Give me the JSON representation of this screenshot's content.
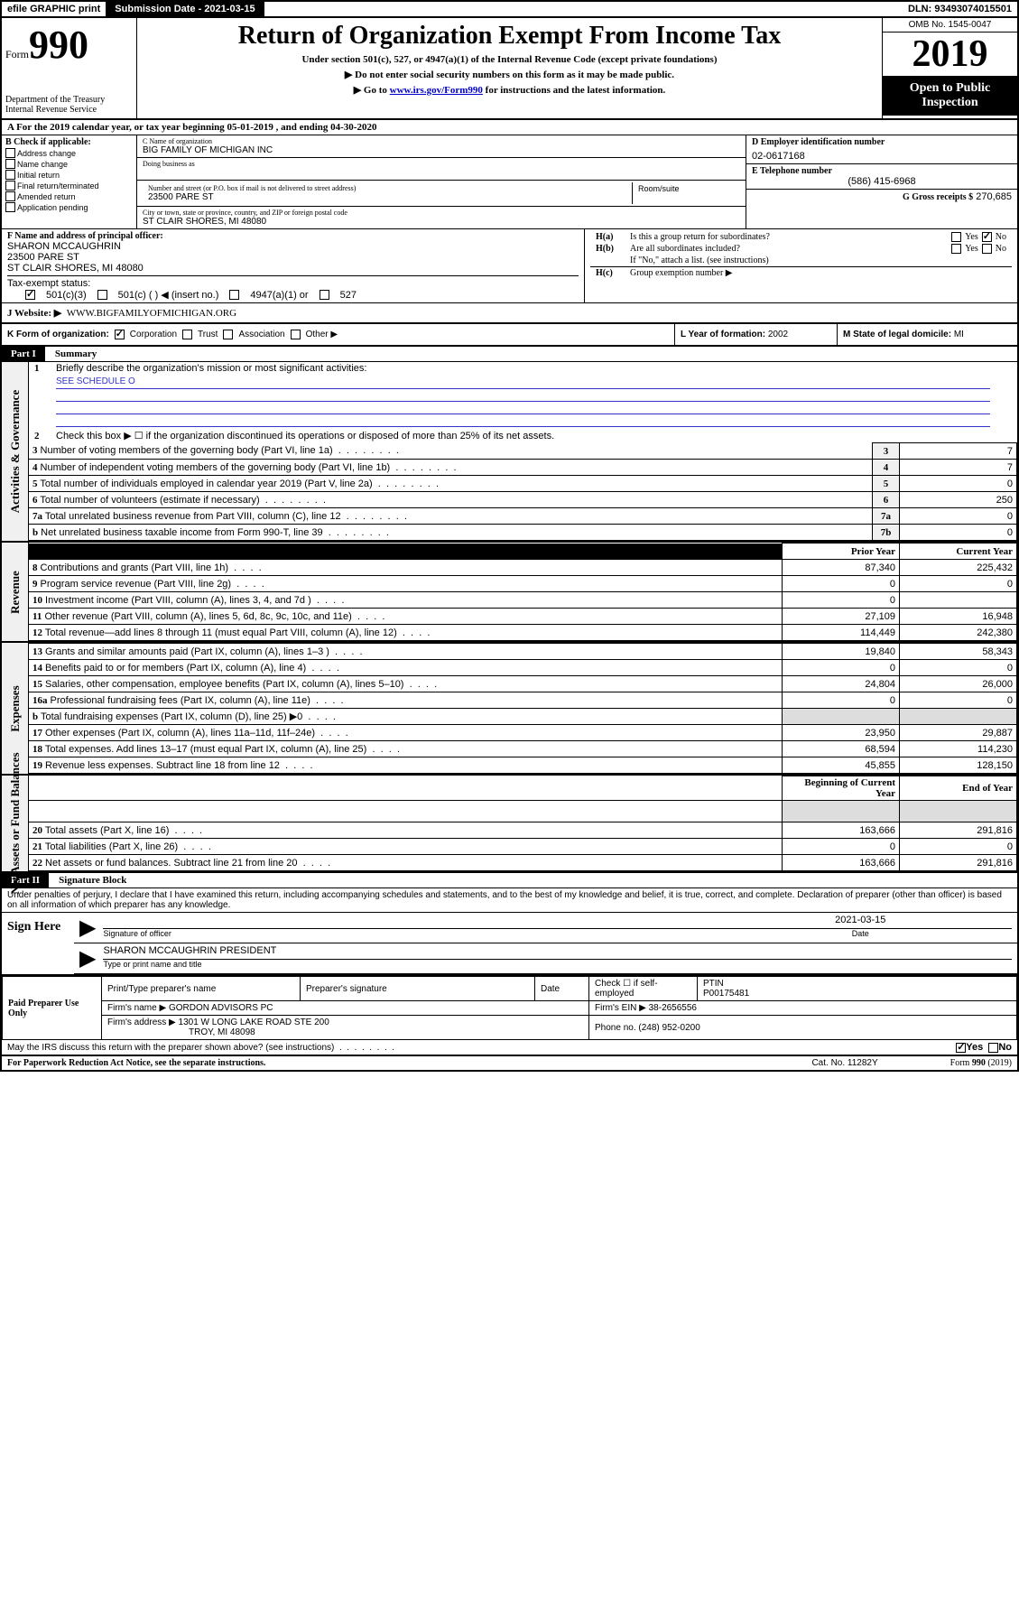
{
  "top": {
    "efile": "efile GRAPHIC print",
    "submission": "Submission Date - 2021-03-15",
    "dln": "DLN: 93493074015501"
  },
  "header": {
    "form_label": "Form",
    "form_num": "990",
    "dept": "Department of the Treasury\nInternal Revenue Service",
    "title": "Return of Organization Exempt From Income Tax",
    "subtitle": "Under section 501(c), 527, or 4947(a)(1) of the Internal Revenue Code (except private foundations)",
    "instr1": "▶ Do not enter social security numbers on this form as it may be made public.",
    "instr2_pre": "▶ Go to ",
    "instr2_link": "www.irs.gov/Form990",
    "instr2_post": " for instructions and the latest information.",
    "omb": "OMB No. 1545-0047",
    "year": "2019",
    "open": "Open to Public Inspection"
  },
  "period": "A For the 2019 calendar year, or tax year beginning 05-01-2019   , and ending 04-30-2020",
  "box_b": {
    "label": "B Check if applicable:",
    "items": [
      "Address change",
      "Name change",
      "Initial return",
      "Final return/terminated",
      "Amended return",
      "Application pending"
    ]
  },
  "box_c": {
    "name_lbl": "C Name of organization",
    "name": "BIG FAMILY OF MICHIGAN INC",
    "dba_lbl": "Doing business as",
    "addr_lbl": "Number and street (or P.O. box if mail is not delivered to street address)",
    "room_lbl": "Room/suite",
    "addr": "23500 PARE ST",
    "city_lbl": "City or town, state or province, country, and ZIP or foreign postal code",
    "city": "ST CLAIR SHORES, MI  48080"
  },
  "box_d": {
    "lbl": "D Employer identification number",
    "val": "02-0617168"
  },
  "box_e": {
    "lbl": "E Telephone number",
    "val": "(586) 415-6968"
  },
  "box_g": {
    "lbl": "G Gross receipts $",
    "val": "270,685"
  },
  "box_f": {
    "lbl": "F Name and address of principal officer:",
    "name": "SHARON MCCAUGHRIN",
    "addr1": "23500 PARE ST",
    "addr2": "ST CLAIR SHORES, MI  48080"
  },
  "box_h": {
    "a": "Is this a group return for subordinates?",
    "b": "Are all subordinates included?",
    "note": "If \"No,\" attach a list. (see instructions)",
    "c": "Group exemption number ▶"
  },
  "tax_exempt": {
    "lbl": "Tax-exempt status:",
    "opts": [
      "501(c)(3)",
      "501(c) (  ) ◀ (insert no.)",
      "4947(a)(1) or",
      "527"
    ]
  },
  "website": {
    "lbl": "J   Website: ▶",
    "val": "WWW.BIGFAMILYOFMICHIGAN.ORG"
  },
  "box_k": {
    "lbl": "K Form of organization:",
    "opts": [
      "Corporation",
      "Trust",
      "Association",
      "Other ▶"
    ]
  },
  "box_l": {
    "lbl": "L Year of formation:",
    "val": "2002"
  },
  "box_m": {
    "lbl": "M State of legal domicile:",
    "val": "MI"
  },
  "part1": {
    "num": "Part I",
    "title": "Summary"
  },
  "part2": {
    "num": "Part II",
    "title": "Signature Block"
  },
  "summary": {
    "q1": "Briefly describe the organization's mission or most significant activities:",
    "q1_val": "SEE SCHEDULE O",
    "q2": "Check this box ▶ ☐  if the organization discontinued its operations or disposed of more than 25% of its net assets.",
    "rows_single": [
      {
        "n": "3",
        "t": "Number of voting members of the governing body (Part VI, line 1a)",
        "box": "3",
        "v": "7"
      },
      {
        "n": "4",
        "t": "Number of independent voting members of the governing body (Part VI, line 1b)",
        "box": "4",
        "v": "7"
      },
      {
        "n": "5",
        "t": "Total number of individuals employed in calendar year 2019 (Part V, line 2a)",
        "box": "5",
        "v": "0"
      },
      {
        "n": "6",
        "t": "Total number of volunteers (estimate if necessary)",
        "box": "6",
        "v": "250"
      },
      {
        "n": "7a",
        "t": "Total unrelated business revenue from Part VIII, column (C), line 12",
        "box": "7a",
        "v": "0"
      },
      {
        "n": "b",
        "t": "Net unrelated business taxable income from Form 990-T, line 39",
        "box": "7b",
        "v": "0"
      }
    ],
    "col_headers": {
      "prior": "Prior Year",
      "current": "Current Year"
    },
    "revenue": [
      {
        "n": "8",
        "t": "Contributions and grants (Part VIII, line 1h)",
        "p": "87,340",
        "c": "225,432"
      },
      {
        "n": "9",
        "t": "Program service revenue (Part VIII, line 2g)",
        "p": "0",
        "c": "0"
      },
      {
        "n": "10",
        "t": "Investment income (Part VIII, column (A), lines 3, 4, and 7d )",
        "p": "0",
        "c": ""
      },
      {
        "n": "11",
        "t": "Other revenue (Part VIII, column (A), lines 5, 6d, 8c, 9c, 10c, and 11e)",
        "p": "27,109",
        "c": "16,948"
      },
      {
        "n": "12",
        "t": "Total revenue—add lines 8 through 11 (must equal Part VIII, column (A), line 12)",
        "p": "114,449",
        "c": "242,380"
      }
    ],
    "expenses": [
      {
        "n": "13",
        "t": "Grants and similar amounts paid (Part IX, column (A), lines 1–3 )",
        "p": "19,840",
        "c": "58,343"
      },
      {
        "n": "14",
        "t": "Benefits paid to or for members (Part IX, column (A), line 4)",
        "p": "0",
        "c": "0"
      },
      {
        "n": "15",
        "t": "Salaries, other compensation, employee benefits (Part IX, column (A), lines 5–10)",
        "p": "24,804",
        "c": "26,000"
      },
      {
        "n": "16a",
        "t": "Professional fundraising fees (Part IX, column (A), line 11e)",
        "p": "0",
        "c": "0"
      },
      {
        "n": "b",
        "t": "Total fundraising expenses (Part IX, column (D), line 25) ▶0",
        "p": "",
        "c": "",
        "shaded": true
      },
      {
        "n": "17",
        "t": "Other expenses (Part IX, column (A), lines 11a–11d, 11f–24e)",
        "p": "23,950",
        "c": "29,887"
      },
      {
        "n": "18",
        "t": "Total expenses. Add lines 13–17 (must equal Part IX, column (A), line 25)",
        "p": "68,594",
        "c": "114,230"
      },
      {
        "n": "19",
        "t": "Revenue less expenses. Subtract line 18 from line 12",
        "p": "45,855",
        "c": "128,150"
      }
    ],
    "net_headers": {
      "begin": "Beginning of Current Year",
      "end": "End of Year"
    },
    "net": [
      {
        "n": "20",
        "t": "Total assets (Part X, line 16)",
        "p": "163,666",
        "c": "291,816"
      },
      {
        "n": "21",
        "t": "Total liabilities (Part X, line 26)",
        "p": "0",
        "c": "0"
      },
      {
        "n": "22",
        "t": "Net assets or fund balances. Subtract line 21 from line 20",
        "p": "163,666",
        "c": "291,816"
      }
    ]
  },
  "side_labels": {
    "gov": "Activities & Governance",
    "rev": "Revenue",
    "exp": "Expenses",
    "net": "Net Assets or Fund Balances"
  },
  "sig": {
    "declare": "Under penalties of perjury, I declare that I have examined this return, including accompanying schedules and statements, and to the best of my knowledge and belief, it is true, correct, and complete. Declaration of preparer (other than officer) is based on all information of which preparer has any knowledge.",
    "sign_here": "Sign Here",
    "sig_officer": "Signature of officer",
    "date": "2021-03-15",
    "date_lbl": "Date",
    "name": "SHARON MCCAUGHRIN  PRESIDENT",
    "name_lbl": "Type or print name and title"
  },
  "preparer": {
    "label": "Paid Preparer Use Only",
    "h1": "Print/Type preparer's name",
    "h2": "Preparer's signature",
    "h3": "Date",
    "h4_pre": "Check ☐ if self-employed",
    "h5": "PTIN",
    "ptin": "P00175481",
    "firm_name_lbl": "Firm's name    ▶",
    "firm_name": "GORDON ADVISORS PC",
    "firm_ein_lbl": "Firm's EIN ▶",
    "firm_ein": "38-2656556",
    "firm_addr_lbl": "Firm's address ▶",
    "firm_addr1": "1301 W LONG LAKE ROAD STE 200",
    "firm_addr2": "TROY, MI  48098",
    "phone_lbl": "Phone no.",
    "phone": "(248) 952-0200"
  },
  "discuss": "May the IRS discuss this return with the preparer shown above? (see instructions)",
  "footer": {
    "paperwork": "For Paperwork Reduction Act Notice, see the separate instructions.",
    "cat": "Cat. No. 11282Y",
    "form": "Form 990 (2019)"
  }
}
